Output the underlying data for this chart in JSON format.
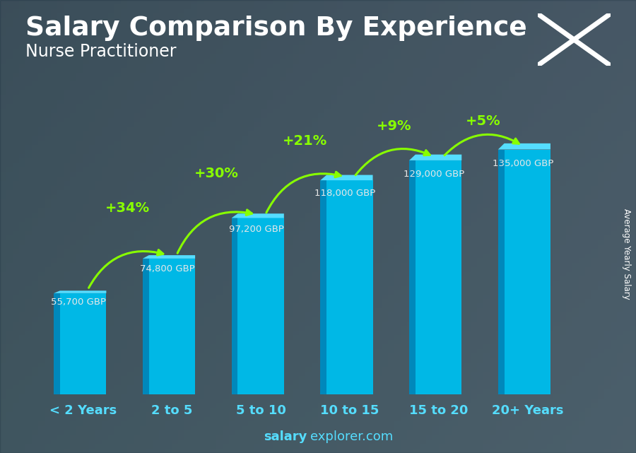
{
  "title": "Salary Comparison By Experience",
  "subtitle": "Nurse Practitioner",
  "categories": [
    "< 2 Years",
    "2 to 5",
    "5 to 10",
    "10 to 15",
    "15 to 20",
    "20+ Years"
  ],
  "values": [
    55700,
    74800,
    97200,
    118000,
    129000,
    135000
  ],
  "value_labels": [
    "55,700 GBP",
    "74,800 GBP",
    "97,200 GBP",
    "118,000 GBP",
    "129,000 GBP",
    "135,000 GBP"
  ],
  "pct_labels": [
    "+34%",
    "+30%",
    "+21%",
    "+9%",
    "+5%"
  ],
  "bar_color": "#00b8e6",
  "bar_left_color": "#0088bb",
  "bar_top_color": "#55ddff",
  "ylabel": "Average Yearly Salary",
  "footer_bold": "salary",
  "footer_normal": "explorer.com",
  "bg_color": "#3a5a6a",
  "text_color": "#ffffff",
  "pct_color": "#88ff00",
  "value_label_color": "#e8e8e8",
  "title_fontsize": 27,
  "subtitle_fontsize": 17,
  "cat_fontsize": 13,
  "bar_width": 0.52,
  "ylim": [
    0,
    155000
  ],
  "flag_blue": "#4169cc",
  "footer_fontsize": 13
}
